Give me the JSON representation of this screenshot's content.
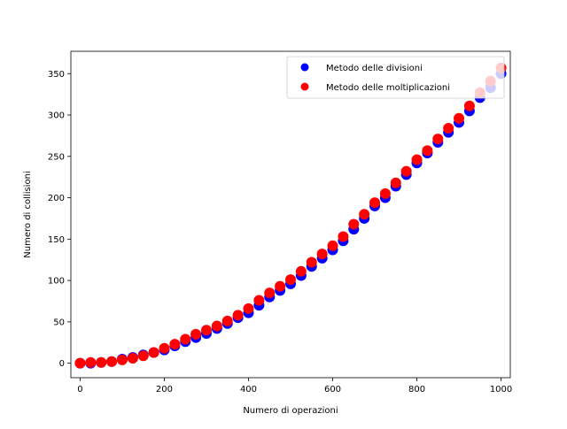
{
  "chart_data": {
    "type": "scatter",
    "title": "",
    "xlabel": "Numero di operazioni",
    "ylabel": "Numero di collisioni",
    "xlim": [
      -22,
      1022
    ],
    "ylim": [
      -17.5,
      377
    ],
    "xticks": [
      0,
      200,
      400,
      600,
      800,
      1000
    ],
    "yticks": [
      0,
      50,
      100,
      150,
      200,
      250,
      300,
      350
    ],
    "grid": false,
    "legend": "top-right",
    "series": [
      {
        "name": "Metodo delle divisioni",
        "color": "#0000ff",
        "x": [
          0,
          25,
          50,
          75,
          100,
          125,
          150,
          175,
          200,
          225,
          250,
          275,
          300,
          325,
          350,
          375,
          400,
          425,
          450,
          475,
          500,
          525,
          550,
          575,
          600,
          625,
          650,
          675,
          700,
          725,
          750,
          775,
          800,
          825,
          850,
          875,
          900,
          925,
          950,
          975,
          1000
        ],
        "y": [
          0,
          0,
          1,
          2,
          5,
          7,
          10,
          13,
          16,
          21,
          26,
          31,
          36,
          42,
          48,
          55,
          61,
          70,
          80,
          88,
          96,
          106,
          117,
          127,
          137,
          148,
          162,
          175,
          190,
          200,
          214,
          228,
          242,
          254,
          267,
          279,
          291,
          305,
          321,
          333,
          350
        ]
      },
      {
        "name": "Metodo delle moltiplicazioni",
        "color": "#ff0000",
        "x": [
          0,
          25,
          50,
          75,
          100,
          125,
          150,
          175,
          200,
          225,
          250,
          275,
          300,
          325,
          350,
          375,
          400,
          425,
          450,
          475,
          500,
          525,
          550,
          575,
          600,
          625,
          650,
          675,
          700,
          725,
          750,
          775,
          800,
          825,
          850,
          875,
          900,
          925,
          950,
          975,
          1000
        ],
        "y": [
          0,
          1,
          1,
          2,
          4,
          6,
          9,
          13,
          18,
          23,
          29,
          35,
          40,
          45,
          51,
          58,
          66,
          76,
          85,
          93,
          101,
          111,
          122,
          132,
          142,
          153,
          168,
          180,
          194,
          205,
          218,
          232,
          246,
          257,
          271,
          284,
          296,
          311,
          327,
          341,
          357
        ]
      }
    ]
  }
}
